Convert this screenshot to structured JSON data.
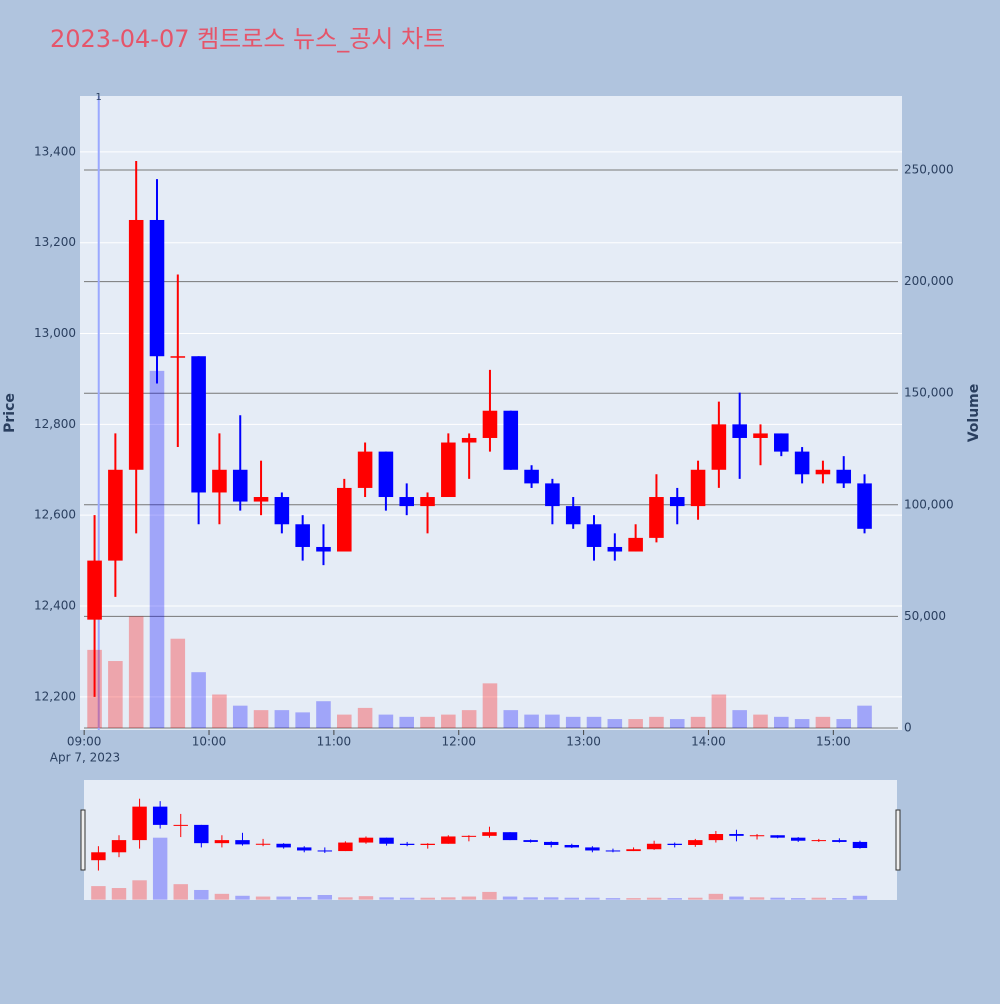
{
  "chart_data": {
    "type": "candlestick",
    "title": "2023-04-07 켐트로스 뉴스_공시 차트",
    "y_label": "Price",
    "y2_label": "Volume",
    "x_date_label": "Apr 7, 2023",
    "increasing_color": "#ff0000",
    "decreasing_color": "#0000ff",
    "x": [
      "09:00",
      "09:10",
      "09:20",
      "09:30",
      "09:40",
      "09:50",
      "10:00",
      "10:10",
      "10:20",
      "10:30",
      "10:40",
      "10:50",
      "11:00",
      "11:10",
      "11:20",
      "11:30",
      "11:40",
      "11:50",
      "12:00",
      "12:10",
      "12:20",
      "12:30",
      "12:40",
      "12:50",
      "13:00",
      "13:10",
      "13:20",
      "13:30",
      "13:40",
      "13:50",
      "14:00",
      "14:10",
      "14:20",
      "14:30",
      "14:40",
      "14:50",
      "15:00",
      "15:10"
    ],
    "open": [
      12370,
      12500,
      12700,
      13250,
      12950,
      12950,
      12650,
      12700,
      12630,
      12640,
      12580,
      12530,
      12520,
      12660,
      12740,
      12640,
      12620,
      12640,
      12760,
      12770,
      12830,
      12700,
      12670,
      12620,
      12580,
      12530,
      12520,
      12550,
      12640,
      12620,
      12700,
      12800,
      12770,
      12780,
      12740,
      12690,
      12700,
      12670
    ],
    "high": [
      12600,
      12780,
      13380,
      13340,
      13130,
      12950,
      12780,
      12820,
      12720,
      12650,
      12600,
      12580,
      12680,
      12760,
      12740,
      12670,
      12650,
      12780,
      12780,
      12920,
      12830,
      12710,
      12680,
      12640,
      12600,
      12560,
      12580,
      12690,
      12660,
      12720,
      12850,
      12870,
      12800,
      12780,
      12750,
      12720,
      12730,
      12690
    ],
    "low": [
      12200,
      12420,
      12560,
      12890,
      12750,
      12580,
      12580,
      12610,
      12600,
      12560,
      12500,
      12490,
      12520,
      12640,
      12610,
      12600,
      12560,
      12640,
      12680,
      12740,
      12700,
      12660,
      12580,
      12570,
      12500,
      12500,
      12520,
      12540,
      12580,
      12590,
      12660,
      12680,
      12710,
      12730,
      12670,
      12670,
      12660,
      12560
    ],
    "close": [
      12500,
      12700,
      13250,
      12950,
      12950,
      12650,
      12700,
      12630,
      12640,
      12580,
      12530,
      12520,
      12660,
      12740,
      12640,
      12620,
      12640,
      12760,
      12770,
      12830,
      12700,
      12670,
      12620,
      12580,
      12530,
      12520,
      12550,
      12640,
      12620,
      12700,
      12800,
      12770,
      12780,
      12740,
      12690,
      12700,
      12670,
      12570
    ],
    "volume": [
      35000,
      30000,
      50000,
      160000,
      40000,
      25000,
      15000,
      10000,
      8000,
      8000,
      7000,
      12000,
      6000,
      9000,
      6000,
      5000,
      5000,
      6000,
      8000,
      20000,
      8000,
      6000,
      6000,
      5000,
      5000,
      4000,
      4000,
      5000,
      4000,
      5000,
      15000,
      8000,
      6000,
      5000,
      4000,
      5000,
      4000,
      10000
    ],
    "xlim": [
      "08:58",
      "15:33"
    ],
    "xticks": [
      "09:00",
      "10:00",
      "11:00",
      "12:00",
      "13:00",
      "14:00",
      "15:00"
    ],
    "ylim": [
      12127,
      13523
    ],
    "yticks": [
      {
        "value": 12200,
        "label": "12,200"
      },
      {
        "value": 12400,
        "label": "12,400"
      },
      {
        "value": 12600,
        "label": "12,600"
      },
      {
        "value": 12800,
        "label": "12,800"
      },
      {
        "value": 13000,
        "label": "13,000"
      },
      {
        "value": 13200,
        "label": "13,200"
      },
      {
        "value": 13400,
        "label": "13,400"
      }
    ],
    "y2lim": [
      -900,
      283150
    ],
    "y2ticks": [
      0,
      {
        "value": 50000,
        "label": "50,000"
      },
      {
        "value": 100000,
        "label": "100,000"
      },
      {
        "value": 150000,
        "label": "150,000"
      },
      {
        "value": 200000,
        "label": "200,000"
      },
      {
        "value": 250000,
        "label": "250,000"
      }
    ],
    "annotation": {
      "x": "09:07",
      "text": "1"
    }
  }
}
